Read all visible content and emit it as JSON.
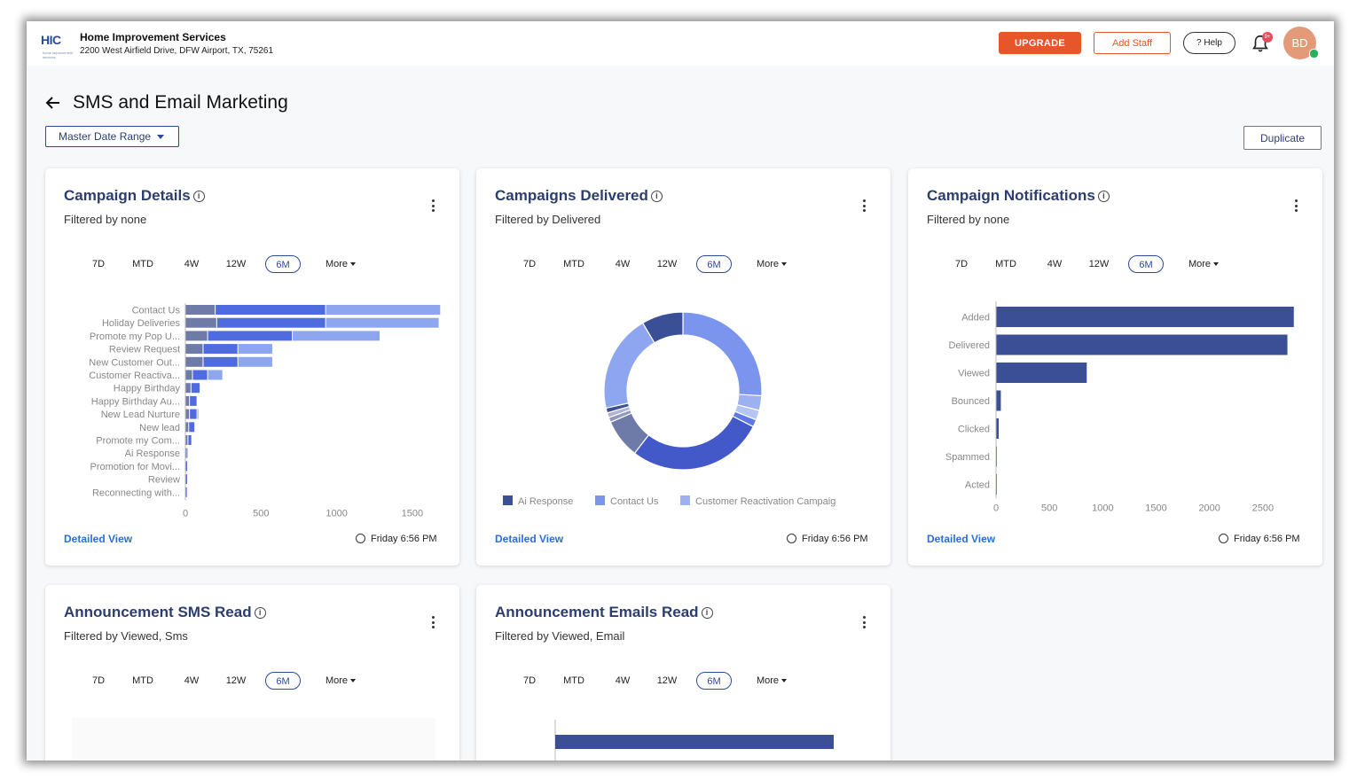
{
  "header": {
    "logo_text": "HIC",
    "logo_tagline": "home improvement services",
    "company_name": "Home Improvement Services",
    "company_address": "2200 West Airfield Drive, DFW Airport, TX, 75261",
    "upgrade_label": "UPGRADE",
    "add_staff_label": "Add Staff",
    "help_label": "? Help",
    "notification_badge": "9+",
    "avatar_initials": "BD"
  },
  "page": {
    "title": "SMS and Email Marketing",
    "date_range_label": "Master Date Range",
    "duplicate_label": "Duplicate"
  },
  "ranges": [
    "7D",
    "MTD",
    "4W",
    "12W",
    "6M",
    "More"
  ],
  "active_range": "6M",
  "colors": {
    "navy": "#3b4f96",
    "blue": "#4e6be0",
    "light_blue": "#8ea6f0",
    "slate": "#6e7ba9",
    "accent_orange": "#e7552a",
    "link_blue": "#2a6fd6"
  },
  "cards": [
    {
      "title": "Campaign Details",
      "subtitle": "Filtered by none",
      "detailed_view": "Detailed View",
      "timestamp": "Friday 6:56 PM"
    },
    {
      "title": "Campaigns Delivered",
      "subtitle": "Filtered by Delivered",
      "detailed_view": "Detailed View",
      "timestamp": "Friday 6:56 PM"
    },
    {
      "title": "Campaign Notifications",
      "subtitle": "Filtered by none",
      "detailed_view": "Detailed View",
      "timestamp": "Friday 6:56 PM"
    },
    {
      "title": "Announcement SMS Read",
      "subtitle": "Filtered by Viewed, Sms"
    },
    {
      "title": "Announcement Emails Read",
      "subtitle": "Filtered by Viewed, Email"
    }
  ],
  "chart_data": [
    {
      "type": "bar",
      "orientation": "horizontal",
      "stacked": true,
      "categories": [
        "Contact Us",
        "Holiday Deliveries",
        "Promote my Pop U...",
        "Review Request",
        "New Customer Out...",
        "Customer Reactiva...",
        "Happy Birthday",
        "Happy Birthday Au...",
        "New Lead Nurture",
        "New lead",
        "Promote my Com...",
        "Ai Response",
        "Promotion for Movi...",
        "Review",
        "Reconnecting with..."
      ],
      "series": [
        {
          "values": [
            200,
            210,
            150,
            120,
            120,
            50,
            40,
            30,
            30,
            25,
            20,
            8,
            6,
            6,
            4
          ]
        },
        {
          "values": [
            730,
            720,
            560,
            230,
            230,
            100,
            60,
            50,
            50,
            40,
            25,
            5,
            4,
            4,
            3
          ]
        },
        {
          "values": [
            760,
            750,
            580,
            230,
            230,
            100,
            0,
            0,
            10,
            0,
            0,
            0,
            0,
            0,
            0
          ]
        }
      ],
      "xticks": [
        0,
        500,
        1000,
        1500
      ],
      "xlim": [
        0,
        1700
      ]
    },
    {
      "type": "pie",
      "donut": true,
      "slices": [
        {
          "value": 26,
          "color": "#7b95ee"
        },
        {
          "value": 3,
          "color": "#9db0f2"
        },
        {
          "value": 2,
          "color": "#b7c5f5"
        },
        {
          "value": 1.5,
          "color": "#5f7ae6"
        },
        {
          "value": 28,
          "color": "#4459c9"
        },
        {
          "value": 8,
          "color": "#6e7ba9"
        },
        {
          "value": 1,
          "color": "#9098bb"
        },
        {
          "value": 1,
          "color": "#b0b6cf"
        },
        {
          "value": 1,
          "color": "#3b4f96"
        },
        {
          "value": 20,
          "color": "#8ea6f0"
        },
        {
          "value": 8.5,
          "color": "#3b4f96"
        }
      ],
      "legend": [
        {
          "name": "Ai Response",
          "color": "#3b4f96"
        },
        {
          "name": "Contact Us",
          "color": "#7b95ee"
        },
        {
          "name": "Customer Reactivation Campaig",
          "color": "#9db0f2"
        }
      ]
    },
    {
      "type": "bar",
      "orientation": "horizontal",
      "categories": [
        "Added",
        "Delivered",
        "Viewed",
        "Bounced",
        "Clicked",
        "Spammed",
        "Acted"
      ],
      "values": [
        2790,
        2730,
        850,
        45,
        25,
        5,
        5
      ],
      "xticks": [
        0,
        500,
        1000,
        1500,
        2000,
        2500
      ],
      "xlim": [
        0,
        2900
      ]
    },
    {
      "type": "bar",
      "orientation": "horizontal",
      "values": []
    },
    {
      "type": "bar",
      "orientation": "horizontal",
      "values": [
        1
      ]
    }
  ]
}
